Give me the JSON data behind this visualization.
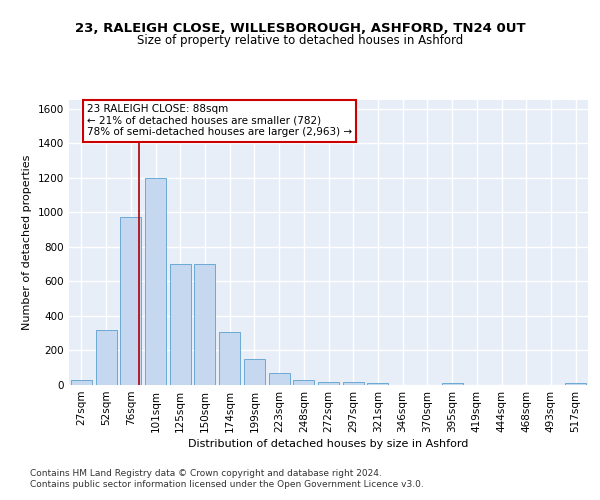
{
  "title": "23, RALEIGH CLOSE, WILLESBOROUGH, ASHFORD, TN24 0UT",
  "subtitle": "Size of property relative to detached houses in Ashford",
  "xlabel": "Distribution of detached houses by size in Ashford",
  "ylabel": "Number of detached properties",
  "bar_labels": [
    "27sqm",
    "52sqm",
    "76sqm",
    "101sqm",
    "125sqm",
    "150sqm",
    "174sqm",
    "199sqm",
    "223sqm",
    "248sqm",
    "272sqm",
    "297sqm",
    "321sqm",
    "346sqm",
    "370sqm",
    "395sqm",
    "419sqm",
    "444sqm",
    "468sqm",
    "493sqm",
    "517sqm"
  ],
  "bar_values": [
    30,
    320,
    970,
    1200,
    700,
    700,
    305,
    150,
    70,
    30,
    20,
    15,
    10,
    0,
    0,
    10,
    0,
    0,
    0,
    0,
    10
  ],
  "bar_color": "#c5d8f0",
  "bar_edge_color": "#6aaad4",
  "background_color": "#e8eef8",
  "grid_color": "#ffffff",
  "red_line_x": 2.35,
  "annotation_text": "23 RALEIGH CLOSE: 88sqm\n← 21% of detached houses are smaller (782)\n78% of semi-detached houses are larger (2,963) →",
  "annotation_box_color": "#ffffff",
  "annotation_box_edge_color": "#cc0000",
  "ylim": [
    0,
    1650
  ],
  "yticks": [
    0,
    200,
    400,
    600,
    800,
    1000,
    1200,
    1400,
    1600
  ],
  "footer_line1": "Contains HM Land Registry data © Crown copyright and database right 2024.",
  "footer_line2": "Contains public sector information licensed under the Open Government Licence v3.0.",
  "title_fontsize": 9.5,
  "subtitle_fontsize": 8.5,
  "axis_label_fontsize": 8,
  "tick_fontsize": 7.5,
  "annotation_fontsize": 7.5,
  "footer_fontsize": 6.5
}
